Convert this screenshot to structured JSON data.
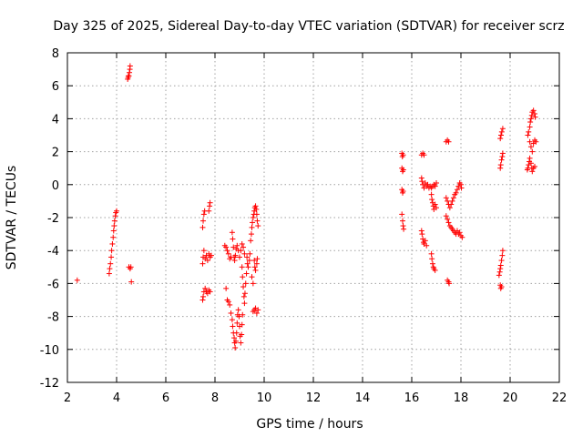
{
  "chart_data": {
    "type": "scatter",
    "title": "Day 325 of 2025, Sidereal Day-to-day VTEC variation (SDTVAR) for receiver scrz",
    "xlabel": "GPS time / hours",
    "ylabel": "SDTVAR / TECUs",
    "xlim": [
      2,
      22
    ],
    "ylim": [
      -12,
      8
    ],
    "xticks": [
      2,
      4,
      6,
      8,
      10,
      12,
      14,
      16,
      18,
      20,
      22
    ],
    "yticks": [
      -12,
      -10,
      -8,
      -6,
      -4,
      -2,
      0,
      2,
      4,
      6,
      8
    ],
    "grid": true,
    "marker": "+",
    "color": "#ff0000",
    "series": [
      {
        "name": "SDTVAR",
        "points": [
          [
            2.4,
            -5.8
          ],
          [
            3.7,
            -5.4
          ],
          [
            3.72,
            -5.1
          ],
          [
            3.75,
            -4.8
          ],
          [
            3.78,
            -4.4
          ],
          [
            3.8,
            -4.0
          ],
          [
            3.83,
            -3.6
          ],
          [
            3.86,
            -3.2
          ],
          [
            3.88,
            -2.8
          ],
          [
            3.9,
            -2.5
          ],
          [
            3.92,
            -2.2
          ],
          [
            3.95,
            -1.9
          ],
          [
            3.97,
            -1.7
          ],
          [
            4.0,
            -1.6
          ],
          [
            4.45,
            6.4
          ],
          [
            4.47,
            6.5
          ],
          [
            4.5,
            6.6
          ],
          [
            4.52,
            6.8
          ],
          [
            4.54,
            7.0
          ],
          [
            4.55,
            7.2
          ],
          [
            4.48,
            6.6
          ],
          [
            4.5,
            -5.0
          ],
          [
            4.55,
            -5.1
          ],
          [
            4.58,
            -5.0
          ],
          [
            4.6,
            -5.9
          ],
          [
            7.5,
            -7.0
          ],
          [
            7.52,
            -6.8
          ],
          [
            7.55,
            -6.5
          ],
          [
            7.6,
            -6.3
          ],
          [
            7.65,
            -6.5
          ],
          [
            7.7,
            -6.6
          ],
          [
            7.75,
            -6.4
          ],
          [
            7.8,
            -6.5
          ],
          [
            7.5,
            -4.8
          ],
          [
            7.52,
            -4.4
          ],
          [
            7.55,
            -4.0
          ],
          [
            7.6,
            -4.5
          ],
          [
            7.65,
            -4.3
          ],
          [
            7.7,
            -4.6
          ],
          [
            7.75,
            -4.2
          ],
          [
            7.8,
            -4.4
          ],
          [
            7.85,
            -4.3
          ],
          [
            7.5,
            -2.6
          ],
          [
            7.52,
            -2.2
          ],
          [
            7.55,
            -1.8
          ],
          [
            7.58,
            -1.6
          ],
          [
            7.75,
            -1.6
          ],
          [
            7.78,
            -1.3
          ],
          [
            7.8,
            -1.1
          ],
          [
            8.4,
            -3.7
          ],
          [
            8.45,
            -3.8
          ],
          [
            8.5,
            -4.0
          ],
          [
            8.55,
            -4.2
          ],
          [
            8.6,
            -4.5
          ],
          [
            8.65,
            -4.4
          ],
          [
            8.45,
            -6.3
          ],
          [
            8.5,
            -7.0
          ],
          [
            8.55,
            -7.1
          ],
          [
            8.6,
            -7.3
          ],
          [
            8.65,
            -7.8
          ],
          [
            8.7,
            -8.2
          ],
          [
            8.72,
            -8.6
          ],
          [
            8.75,
            -9.0
          ],
          [
            8.78,
            -9.3
          ],
          [
            8.8,
            -9.6
          ],
          [
            8.82,
            -9.9
          ],
          [
            8.85,
            -9.5
          ],
          [
            8.88,
            -9.0
          ],
          [
            8.9,
            -8.4
          ],
          [
            8.92,
            -7.9
          ],
          [
            8.95,
            -7.6
          ],
          [
            8.98,
            -8.0
          ],
          [
            9.0,
            -8.6
          ],
          [
            9.02,
            -9.2
          ],
          [
            9.05,
            -9.6
          ],
          [
            9.08,
            -9.1
          ],
          [
            9.1,
            -8.5
          ],
          [
            9.12,
            -7.9
          ],
          [
            8.7,
            -2.9
          ],
          [
            8.72,
            -3.3
          ],
          [
            8.75,
            -3.8
          ],
          [
            8.78,
            -4.4
          ],
          [
            8.8,
            -4.6
          ],
          [
            8.83,
            -4.3
          ],
          [
            8.86,
            -3.9
          ],
          [
            8.9,
            -3.7
          ],
          [
            8.95,
            -4.0
          ],
          [
            9.0,
            -4.4
          ],
          [
            9.05,
            -4.0
          ],
          [
            9.1,
            -3.6
          ],
          [
            9.15,
            -3.8
          ],
          [
            9.2,
            -4.2
          ],
          [
            9.1,
            -5.0
          ],
          [
            9.12,
            -5.6
          ],
          [
            9.15,
            -6.2
          ],
          [
            9.18,
            -6.8
          ],
          [
            9.2,
            -7.2
          ],
          [
            9.22,
            -6.6
          ],
          [
            9.25,
            -6.0
          ],
          [
            9.28,
            -5.4
          ],
          [
            9.3,
            -4.4
          ],
          [
            9.32,
            -4.8
          ],
          [
            9.35,
            -5.0
          ],
          [
            9.4,
            -4.6
          ],
          [
            9.42,
            -4.2
          ],
          [
            9.45,
            -3.4
          ],
          [
            9.48,
            -3.0
          ],
          [
            9.5,
            -2.6
          ],
          [
            9.52,
            -2.3
          ],
          [
            9.55,
            -2.0
          ],
          [
            9.58,
            -1.8
          ],
          [
            9.6,
            -1.6
          ],
          [
            9.62,
            -1.4
          ],
          [
            9.65,
            -1.3
          ],
          [
            9.68,
            -1.5
          ],
          [
            9.7,
            -1.8
          ],
          [
            9.72,
            -2.2
          ],
          [
            9.75,
            -2.5
          ],
          [
            9.6,
            -4.6
          ],
          [
            9.62,
            -5.0
          ],
          [
            9.65,
            -5.2
          ],
          [
            9.7,
            -4.8
          ],
          [
            9.72,
            -4.5
          ],
          [
            9.5,
            -5.6
          ],
          [
            9.55,
            -6.0
          ],
          [
            9.55,
            -7.7
          ],
          [
            9.6,
            -7.6
          ],
          [
            9.65,
            -7.5
          ],
          [
            9.7,
            -7.8
          ],
          [
            9.75,
            -7.6
          ],
          [
            15.6,
            1.9
          ],
          [
            15.62,
            1.7
          ],
          [
            15.65,
            1.8
          ],
          [
            15.6,
            1.0
          ],
          [
            15.63,
            0.8
          ],
          [
            15.66,
            0.9
          ],
          [
            15.6,
            -0.3
          ],
          [
            15.63,
            -0.5
          ],
          [
            15.65,
            -0.4
          ],
          [
            15.6,
            -1.8
          ],
          [
            15.63,
            -2.2
          ],
          [
            15.65,
            -2.5
          ],
          [
            15.67,
            -2.7
          ],
          [
            16.4,
            1.8
          ],
          [
            16.45,
            1.9
          ],
          [
            16.5,
            1.8
          ],
          [
            16.4,
            0.4
          ],
          [
            16.42,
            0.2
          ],
          [
            16.45,
            0.0
          ],
          [
            16.5,
            -0.2
          ],
          [
            16.55,
            0.1
          ],
          [
            16.6,
            -0.1
          ],
          [
            16.65,
            0.0
          ],
          [
            16.7,
            -0.2
          ],
          [
            16.75,
            -0.1
          ],
          [
            16.8,
            -0.2
          ],
          [
            16.85,
            -0.1
          ],
          [
            16.9,
            0.0
          ],
          [
            16.95,
            -0.1
          ],
          [
            17.0,
            0.1
          ],
          [
            16.8,
            -0.6
          ],
          [
            16.82,
            -0.9
          ],
          [
            16.85,
            -1.1
          ],
          [
            16.88,
            -1.3
          ],
          [
            16.9,
            -1.5
          ],
          [
            16.95,
            -1.2
          ],
          [
            17.0,
            -1.4
          ],
          [
            16.4,
            -2.8
          ],
          [
            16.42,
            -3.0
          ],
          [
            16.45,
            -3.3
          ],
          [
            16.48,
            -3.5
          ],
          [
            16.5,
            -3.6
          ],
          [
            16.55,
            -3.4
          ],
          [
            16.6,
            -3.7
          ],
          [
            16.8,
            -4.2
          ],
          [
            16.82,
            -4.5
          ],
          [
            16.85,
            -4.8
          ],
          [
            16.88,
            -5.0
          ],
          [
            16.9,
            -5.1
          ],
          [
            16.95,
            -5.2
          ],
          [
            17.4,
            2.6
          ],
          [
            17.45,
            2.7
          ],
          [
            17.5,
            2.6
          ],
          [
            17.4,
            -0.8
          ],
          [
            17.45,
            -1.0
          ],
          [
            17.5,
            -1.2
          ],
          [
            17.55,
            -1.4
          ],
          [
            17.6,
            -1.2
          ],
          [
            17.65,
            -1.0
          ],
          [
            17.7,
            -0.8
          ],
          [
            17.75,
            -0.6
          ],
          [
            17.8,
            -0.5
          ],
          [
            17.85,
            -0.3
          ],
          [
            17.9,
            -0.1
          ],
          [
            17.95,
            0.1
          ],
          [
            18.0,
            0.0
          ],
          [
            18.02,
            -0.2
          ],
          [
            17.4,
            -1.9
          ],
          [
            17.45,
            -2.1
          ],
          [
            17.5,
            -2.3
          ],
          [
            17.55,
            -2.5
          ],
          [
            17.6,
            -2.6
          ],
          [
            17.65,
            -2.7
          ],
          [
            17.7,
            -2.8
          ],
          [
            17.75,
            -2.9
          ],
          [
            17.8,
            -3.0
          ],
          [
            17.85,
            -2.8
          ],
          [
            17.9,
            -3.0
          ],
          [
            17.95,
            -2.9
          ],
          [
            18.0,
            -3.1
          ],
          [
            18.05,
            -3.2
          ],
          [
            17.45,
            -5.8
          ],
          [
            17.5,
            -5.9
          ],
          [
            17.52,
            -6.0
          ],
          [
            19.6,
            1.0
          ],
          [
            19.62,
            1.2
          ],
          [
            19.65,
            1.5
          ],
          [
            19.68,
            1.7
          ],
          [
            19.7,
            1.9
          ],
          [
            19.6,
            2.8
          ],
          [
            19.63,
            3.0
          ],
          [
            19.66,
            3.2
          ],
          [
            19.7,
            3.4
          ],
          [
            19.55,
            -5.5
          ],
          [
            19.58,
            -5.3
          ],
          [
            19.6,
            -5.1
          ],
          [
            19.62,
            -4.9
          ],
          [
            19.65,
            -4.6
          ],
          [
            19.68,
            -4.3
          ],
          [
            19.7,
            -4.0
          ],
          [
            19.6,
            -6.1
          ],
          [
            19.62,
            -6.3
          ],
          [
            19.65,
            -6.2
          ],
          [
            20.7,
            0.9
          ],
          [
            20.72,
            1.0
          ],
          [
            20.75,
            1.2
          ],
          [
            20.78,
            1.4
          ],
          [
            20.8,
            1.6
          ],
          [
            20.85,
            1.3
          ],
          [
            20.88,
            1.0
          ],
          [
            20.9,
            0.8
          ],
          [
            20.95,
            1.0
          ],
          [
            21.0,
            1.1
          ],
          [
            20.72,
            3.0
          ],
          [
            20.75,
            3.2
          ],
          [
            20.8,
            3.5
          ],
          [
            20.82,
            3.8
          ],
          [
            20.85,
            4.0
          ],
          [
            20.88,
            4.2
          ],
          [
            20.9,
            4.4
          ],
          [
            20.95,
            4.5
          ],
          [
            21.0,
            4.3
          ],
          [
            21.02,
            4.1
          ],
          [
            20.8,
            2.6
          ],
          [
            20.85,
            2.3
          ],
          [
            20.9,
            2.0
          ],
          [
            20.95,
            2.5
          ],
          [
            21.0,
            2.7
          ],
          [
            21.05,
            2.6
          ]
        ]
      }
    ]
  }
}
